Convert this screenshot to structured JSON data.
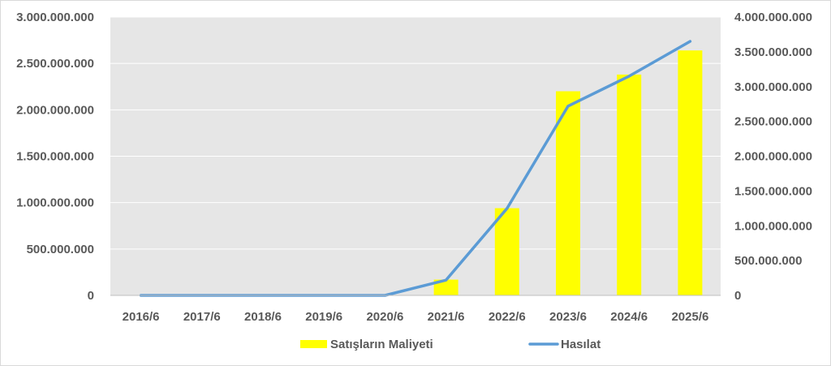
{
  "chart_data": {
    "type": "bar+line",
    "categories": [
      "2016/6",
      "2017/6",
      "2018/6",
      "2019/6",
      "2020/6",
      "2021/6",
      "2022/6",
      "2023/6",
      "2024/6",
      "2025/6"
    ],
    "series": [
      {
        "name": "Satışların Maliyeti",
        "type": "bar",
        "axis": "left",
        "color": "#ffff00",
        "values": [
          0,
          0,
          0,
          0,
          0,
          170000000,
          940000000,
          2200000000,
          2380000000,
          2640000000
        ]
      },
      {
        "name": "Hasılat",
        "type": "line",
        "axis": "right",
        "color": "#5b9bd5",
        "values": [
          0,
          0,
          0,
          0,
          0,
          220000000,
          1250000000,
          2720000000,
          3150000000,
          3650000000
        ]
      }
    ],
    "y_left": {
      "lim": [
        0,
        3000000000
      ],
      "ticks": [
        0,
        500000000,
        1000000000,
        1500000000,
        2000000000,
        2500000000,
        3000000000
      ],
      "tick_labels": [
        "0",
        "500.000.000",
        "1.000.000.000",
        "1.500.000.000",
        "2.000.000.000",
        "2.500.000.000",
        "3.000.000.000"
      ]
    },
    "y_right": {
      "lim": [
        0,
        4000000000
      ],
      "ticks": [
        0,
        500000000,
        1000000000,
        1500000000,
        2000000000,
        2500000000,
        3000000000,
        3500000000,
        4000000000
      ],
      "tick_labels": [
        "0",
        "500.000.000",
        "1.000.000.000",
        "1.500.000.000",
        "2.000.000.000",
        "2.500.000.000",
        "3.000.000.000",
        "3.500.000.000",
        "4.000.000.000"
      ]
    },
    "plot_background": "#e6e6e6",
    "grid": true,
    "grid_color": "#ffffff",
    "legend_position": "bottom",
    "title": "",
    "xlabel": "",
    "ylabel": ""
  }
}
